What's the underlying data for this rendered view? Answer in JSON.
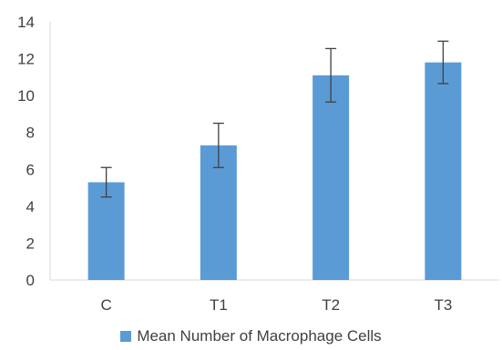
{
  "chart_data": {
    "type": "bar",
    "title": "",
    "xlabel": "",
    "ylabel": "",
    "categories": [
      "C",
      "T1",
      "T2",
      "T3"
    ],
    "series": [
      {
        "name": "Mean Number of Macrophage Cells",
        "values": [
          5.3,
          7.3,
          11.1,
          11.8
        ],
        "error": [
          0.8,
          1.2,
          1.45,
          1.15
        ]
      }
    ],
    "ylim": [
      0,
      14
    ],
    "yticks": [
      "0",
      "2",
      "4",
      "6",
      "8",
      "10",
      "12",
      "14"
    ],
    "grid": false,
    "legend_position": "bottom",
    "colors": {
      "bar": "#5b9bd5",
      "error_bar": "#404040",
      "axis": "#d9d9d9",
      "text": "#404040"
    }
  }
}
